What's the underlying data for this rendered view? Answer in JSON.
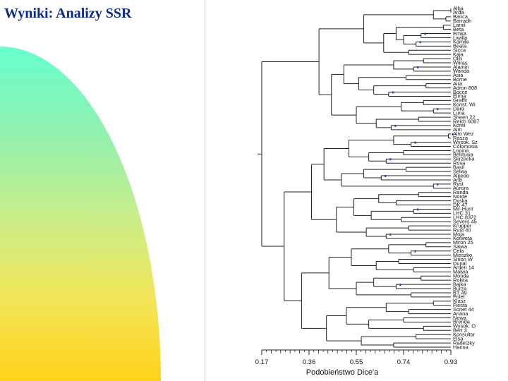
{
  "slide": {
    "title": "Wyniki: Analizy SSR"
  },
  "colors": {
    "title": "#0b2a8c",
    "line": "#202020",
    "marker": "#1a3fb0"
  },
  "chart_data": {
    "type": "dendrogram",
    "xlabel": "Podobieństwo Dice'a",
    "xlim": [
      0.17,
      0.93
    ],
    "ticks": [
      "0.17",
      "0.36",
      "0.55",
      "0.74",
      "0.93"
    ],
    "tick_values": [
      0.17,
      0.36,
      0.55,
      0.74,
      0.93
    ],
    "leaves": [
      "Alba",
      "Arda",
      "Banca",
      "Barradh",
      "Lamil",
      "Beta",
      "Emka",
      "Liwilla",
      "Kamila",
      "Beata",
      "Sicca",
      "Kaja",
      "Olin",
      "Wiiras",
      "Alamin",
      "Wanda",
      "Asia",
      "Borne",
      "Aira",
      "Adron 808",
      "Bocce",
      "Elima",
      "Graffit",
      "Konst. Wi",
      "Dara",
      "Luna",
      "Sheen 22",
      "Reich 6087",
      "Korel",
      "Aim",
      "Alto Wez",
      "Rasza",
      "Wysok. Sz",
      "Colomosia",
      "Lopina",
      "Bentusia",
      "Skrzecka",
      "Rosa",
      "Basil",
      "Selwa",
      "Alpedo",
      "Arib",
      "Ryst",
      "Aurora",
      "Randa",
      "Norde",
      "Dyska",
      "DK 47",
      "Mir-Hunt",
      "LHC 31",
      "LHC 8372",
      "Severo 45",
      "Krupper",
      "Rust 40",
      "Moja",
      "Korweta",
      "Miron 25",
      "Saiwa",
      "Cela",
      "Mieszko",
      "Sirion W",
      "Dunal",
      "Arden 14",
      "Malwa",
      "Monda",
      "Rokita",
      "Bajka",
      "Burza",
      "BT 49",
      "Polet",
      "Klasz",
      "Fiesta",
      "Sonet 44",
      "Ariana",
      "Nowa",
      "Brenda",
      "Wysok. O",
      "Bert 3",
      "Konsultor",
      "Elsa",
      "Radetzky",
      "Hanna"
    ],
    "clusters": [
      {
        "members": [
          2,
          3
        ],
        "sim": 0.91
      },
      {
        "members": [
          0,
          1
        ],
        "sim": 0.93
      },
      {
        "members": [
          0,
          1,
          2,
          3
        ],
        "sim": 0.86
      },
      {
        "members": [
          4,
          5
        ],
        "sim": 0.9
      },
      {
        "members": [
          6,
          7
        ],
        "sim": 0.81,
        "marker": true
      },
      {
        "members": [
          8,
          9
        ],
        "sim": 0.79,
        "marker": true
      },
      {
        "members": [
          6,
          7,
          8,
          9
        ],
        "sim": 0.74
      },
      {
        "members": [
          4,
          5,
          6,
          7,
          8,
          9
        ],
        "sim": 0.71
      },
      {
        "members": [
          10,
          11
        ],
        "sim": 0.76
      },
      {
        "members": [
          4,
          5,
          6,
          7,
          8,
          9,
          10,
          11
        ],
        "sim": 0.66
      },
      {
        "members": [
          0,
          1,
          2,
          3,
          4,
          5,
          6,
          7,
          8,
          9,
          10,
          11
        ],
        "sim": 0.58
      },
      {
        "members": [
          12,
          13
        ],
        "sim": 0.82
      },
      {
        "members": [
          14,
          15
        ],
        "sim": 0.78,
        "marker": true
      },
      {
        "members": [
          12,
          13,
          14,
          15
        ],
        "sim": 0.7
      },
      {
        "members": [
          16,
          17
        ],
        "sim": 0.75
      },
      {
        "members": [
          18,
          19
        ],
        "sim": 0.83
      },
      {
        "members": [
          20,
          21
        ],
        "sim": 0.68,
        "marker": true
      },
      {
        "members": [
          18,
          19,
          20,
          21
        ],
        "sim": 0.62
      },
      {
        "members": [
          16,
          17,
          18,
          19,
          20,
          21
        ],
        "sim": 0.56
      },
      {
        "members": [
          12,
          13,
          14,
          15,
          16,
          17,
          18,
          19,
          20,
          21
        ],
        "sim": 0.5
      },
      {
        "members": [
          22,
          23
        ],
        "sim": 0.82
      },
      {
        "members": [
          24,
          25
        ],
        "sim": 0.86,
        "marker": true
      },
      {
        "members": [
          22,
          23,
          24,
          25
        ],
        "sim": 0.73
      },
      {
        "members": [
          26,
          27
        ],
        "sim": 0.8
      },
      {
        "members": [
          28,
          29
        ],
        "sim": 0.69,
        "marker": true
      },
      {
        "members": [
          26,
          27,
          28,
          29
        ],
        "sim": 0.63
      },
      {
        "members": [
          22,
          23,
          24,
          25,
          26,
          27,
          28,
          29
        ],
        "sim": 0.55
      },
      {
        "members": [
          12,
          13,
          14,
          15,
          16,
          17,
          18,
          19,
          20,
          21,
          22,
          23,
          24,
          25,
          26,
          27,
          28,
          29
        ],
        "sim": 0.45
      },
      {
        "members": [
          0,
          1,
          2,
          3,
          4,
          5,
          6,
          7,
          8,
          9,
          10,
          11,
          12,
          13,
          14,
          15,
          16,
          17,
          18,
          19,
          20,
          21,
          22,
          23,
          24,
          25,
          26,
          27,
          28,
          29
        ],
        "sim": 0.4
      },
      {
        "members": [
          30,
          31
        ],
        "sim": 0.92,
        "marker": true
      },
      {
        "members": [
          32,
          33
        ],
        "sim": 0.77,
        "marker": true
      },
      {
        "members": [
          30,
          31,
          32,
          33
        ],
        "sim": 0.7
      },
      {
        "members": [
          34,
          35
        ],
        "sim": 0.74
      },
      {
        "members": [
          36,
          37
        ],
        "sim": 0.67,
        "marker": true
      },
      {
        "members": [
          34,
          35,
          36,
          37
        ],
        "sim": 0.6
      },
      {
        "members": [
          30,
          31,
          32,
          33,
          34,
          35,
          36,
          37
        ],
        "sim": 0.52
      },
      {
        "members": [
          38,
          39
        ],
        "sim": 0.75
      },
      {
        "members": [
          40,
          41
        ],
        "sim": 0.65,
        "marker": true
      },
      {
        "members": [
          38,
          39,
          40,
          41
        ],
        "sim": 0.58
      },
      {
        "members": [
          42,
          43
        ],
        "sim": 0.86,
        "marker": true
      },
      {
        "members": [
          38,
          39,
          40,
          41,
          42,
          43
        ],
        "sim": 0.49
      },
      {
        "members": [
          30,
          31,
          32,
          33,
          34,
          35,
          36,
          37,
          38,
          39,
          40,
          41,
          42,
          43
        ],
        "sim": 0.42
      },
      {
        "members": [
          44,
          45
        ],
        "sim": 0.8
      },
      {
        "members": [
          46,
          47
        ],
        "sim": 0.71
      },
      {
        "members": [
          44,
          45,
          46,
          47
        ],
        "sim": 0.64
      },
      {
        "members": [
          48,
          49
        ],
        "sim": 0.78,
        "marker": true
      },
      {
        "members": [
          50,
          51
        ],
        "sim": 0.73
      },
      {
        "members": [
          48,
          49,
          50,
          51
        ],
        "sim": 0.61
      },
      {
        "members": [
          44,
          45,
          46,
          47,
          48,
          49,
          50,
          51
        ],
        "sim": 0.54
      },
      {
        "members": [
          52,
          53
        ],
        "sim": 0.76
      },
      {
        "members": [
          54,
          55
        ],
        "sim": 0.67,
        "marker": true
      },
      {
        "members": [
          52,
          53,
          54,
          55
        ],
        "sim": 0.59
      },
      {
        "members": [
          44,
          45,
          46,
          47,
          48,
          49,
          50,
          51,
          52,
          53,
          54,
          55
        ],
        "sim": 0.47
      },
      {
        "members": [
          30,
          31,
          32,
          33,
          34,
          35,
          36,
          37,
          38,
          39,
          40,
          41,
          42,
          43,
          44,
          45,
          46,
          47,
          48,
          49,
          50,
          51,
          52,
          53,
          54,
          55
        ],
        "sim": 0.37
      },
      {
        "members": [
          56,
          57
        ],
        "sim": 0.83
      },
      {
        "members": [
          58,
          59
        ],
        "sim": 0.77,
        "marker": true
      },
      {
        "members": [
          56,
          57,
          58,
          59
        ],
        "sim": 0.68
      },
      {
        "members": [
          60,
          61
        ],
        "sim": 0.72
      },
      {
        "members": [
          62,
          63
        ],
        "sim": 0.78
      },
      {
        "members": [
          60,
          61,
          62,
          63
        ],
        "sim": 0.63
      },
      {
        "members": [
          56,
          57,
          58,
          59,
          60,
          61,
          62,
          63
        ],
        "sim": 0.53
      },
      {
        "members": [
          64,
          65
        ],
        "sim": 0.81
      },
      {
        "members": [
          66,
          67
        ],
        "sim": 0.71,
        "marker": true
      },
      {
        "members": [
          64,
          65,
          66,
          67
        ],
        "sim": 0.62
      },
      {
        "members": [
          68,
          69
        ],
        "sim": 0.77
      },
      {
        "members": [
          64,
          65,
          66,
          67,
          68,
          69
        ],
        "sim": 0.55
      },
      {
        "members": [
          56,
          57,
          58,
          59,
          60,
          61,
          62,
          63,
          64,
          65,
          66,
          67,
          68,
          69
        ],
        "sim": 0.44
      },
      {
        "members": [
          70,
          71
        ],
        "sim": 0.86
      },
      {
        "members": [
          72,
          73
        ],
        "sim": 0.76
      },
      {
        "members": [
          70,
          71,
          72,
          73
        ],
        "sim": 0.67
      },
      {
        "members": [
          74,
          75
        ],
        "sim": 0.74
      },
      {
        "members": [
          76,
          77
        ],
        "sim": 0.82
      },
      {
        "members": [
          74,
          75,
          76,
          77
        ],
        "sim": 0.6
      },
      {
        "members": [
          70,
          71,
          72,
          73,
          74,
          75,
          76,
          77
        ],
        "sim": 0.51
      },
      {
        "members": [
          78,
          79
        ],
        "sim": 0.79
      },
      {
        "members": [
          80,
          81
        ],
        "sim": 0.7
      },
      {
        "members": [
          78,
          79,
          80,
          81
        ],
        "sim": 0.57
      },
      {
        "members": [
          70,
          71,
          72,
          73,
          74,
          75,
          76,
          77,
          78,
          79,
          80,
          81
        ],
        "sim": 0.43
      },
      {
        "members": [
          56,
          57,
          58,
          59,
          60,
          61,
          62,
          63,
          64,
          65,
          66,
          67,
          68,
          69,
          70,
          71,
          72,
          73,
          74,
          75,
          76,
          77,
          78,
          79,
          80,
          81
        ],
        "sim": 0.33
      },
      {
        "members": [
          30,
          31,
          32,
          33,
          34,
          35,
          36,
          37,
          38,
          39,
          40,
          41,
          42,
          43,
          44,
          45,
          46,
          47,
          48,
          49,
          50,
          51,
          52,
          53,
          54,
          55,
          56,
          57,
          58,
          59,
          60,
          61,
          62,
          63,
          64,
          65,
          66,
          67,
          68,
          69,
          70,
          71,
          72,
          73,
          74,
          75,
          76,
          77,
          78,
          79,
          80,
          81
        ],
        "sim": 0.26
      },
      {
        "members": [
          0,
          1,
          2,
          3,
          4,
          5,
          6,
          7,
          8,
          9,
          10,
          11,
          12,
          13,
          14,
          15,
          16,
          17,
          18,
          19,
          20,
          21,
          22,
          23,
          24,
          25,
          26,
          27,
          28,
          29,
          30,
          31,
          32,
          33,
          34,
          35,
          36,
          37,
          38,
          39,
          40,
          41,
          42,
          43,
          44,
          45,
          46,
          47,
          48,
          49,
          50,
          51,
          52,
          53,
          54,
          55,
          56,
          57,
          58,
          59,
          60,
          61,
          62,
          63,
          64,
          65,
          66,
          67,
          68,
          69,
          70,
          71,
          72,
          73,
          74,
          75,
          76,
          77,
          78,
          79,
          80,
          81
        ],
        "sim": 0.17
      }
    ]
  }
}
